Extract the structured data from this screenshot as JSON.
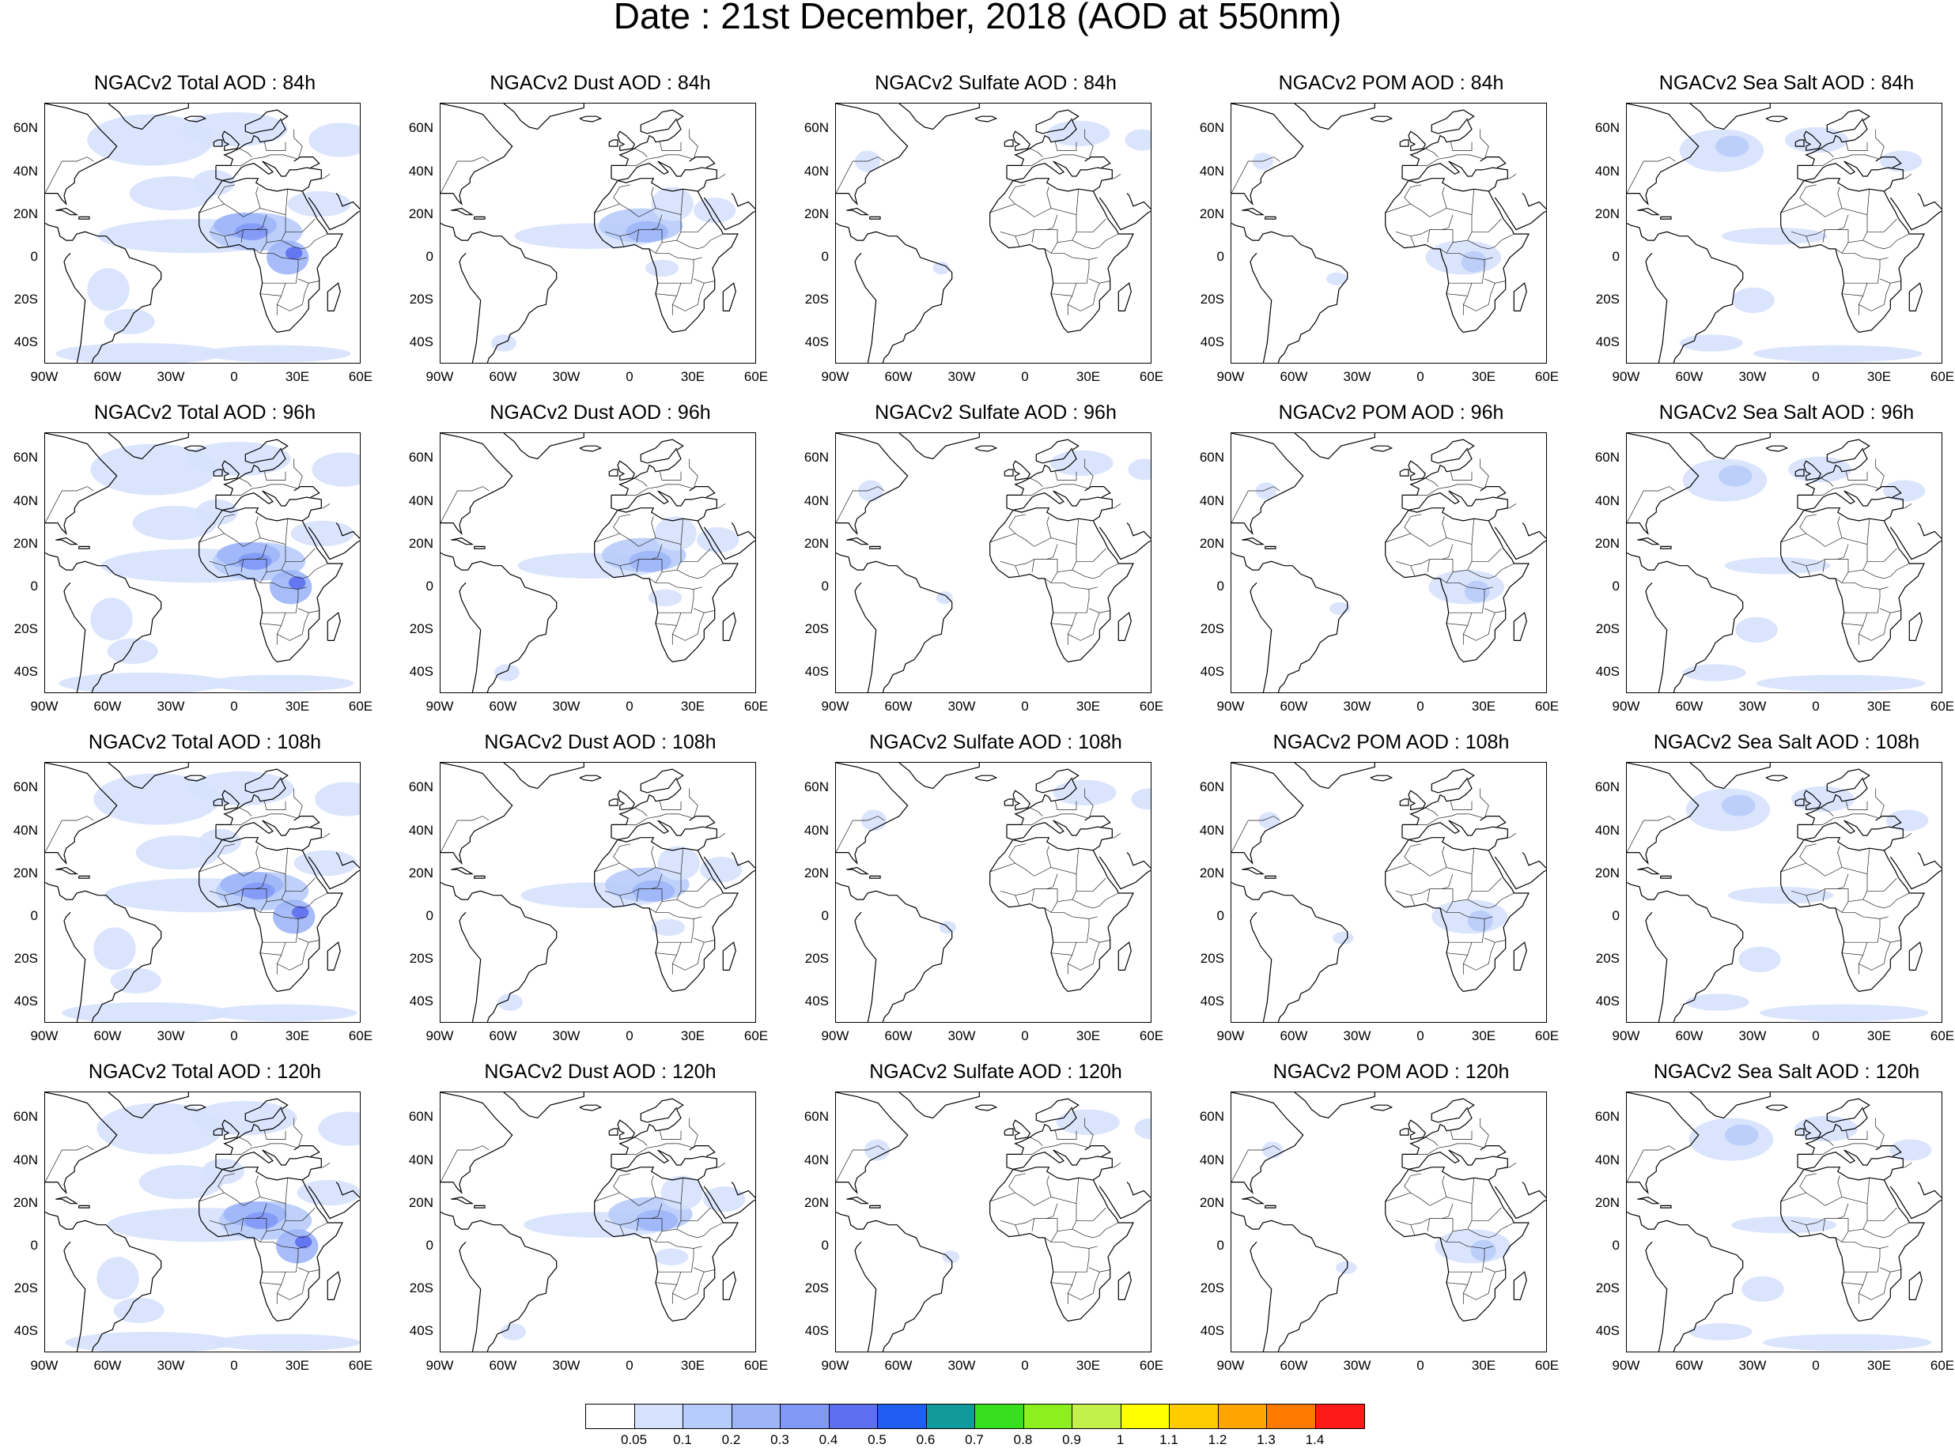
{
  "title": "Date : 21st December, 2018 (AOD at 550nm)",
  "lat_labels": [
    "60N",
    "40N",
    "20N",
    "0",
    "20S",
    "40S"
  ],
  "lon_labels": [
    "90W",
    "60W",
    "30W",
    "0",
    "30E",
    "60E"
  ],
  "panels": [
    {
      "title": "NGACv2 Total AOD : 84h",
      "species": "total",
      "hour": 84
    },
    {
      "title": "NGACv2 Dust AOD : 84h",
      "species": "dust",
      "hour": 84
    },
    {
      "title": "NGACv2 Sulfate AOD : 84h",
      "species": "sulfate",
      "hour": 84
    },
    {
      "title": "NGACv2 POM AOD : 84h",
      "species": "pom",
      "hour": 84
    },
    {
      "title": "NGACv2 Sea Salt AOD : 84h",
      "species": "seasalt",
      "hour": 84
    },
    {
      "title": "NGACv2 Total AOD : 96h",
      "species": "total",
      "hour": 96
    },
    {
      "title": "NGACv2 Dust AOD : 96h",
      "species": "dust",
      "hour": 96
    },
    {
      "title": "NGACv2 Sulfate AOD : 96h",
      "species": "sulfate",
      "hour": 96
    },
    {
      "title": "NGACv2 POM AOD : 96h",
      "species": "pom",
      "hour": 96
    },
    {
      "title": "NGACv2 Sea Salt AOD : 96h",
      "species": "seasalt",
      "hour": 96
    },
    {
      "title": "NGACv2 Total AOD : 108h",
      "species": "total",
      "hour": 108
    },
    {
      "title": "NGACv2 Dust AOD : 108h",
      "species": "dust",
      "hour": 108
    },
    {
      "title": "NGACv2 Sulfate AOD : 108h",
      "species": "sulfate",
      "hour": 108
    },
    {
      "title": "NGACv2 POM AOD : 108h",
      "species": "pom",
      "hour": 108
    },
    {
      "title": "NGACv2 Sea Salt AOD : 108h",
      "species": "seasalt",
      "hour": 108
    },
    {
      "title": "NGACv2 Total AOD : 120h",
      "species": "total",
      "hour": 120
    },
    {
      "title": "NGACv2 Dust AOD : 120h",
      "species": "dust",
      "hour": 120
    },
    {
      "title": "NGACv2 Sulfate AOD : 120h",
      "species": "sulfate",
      "hour": 120
    },
    {
      "title": "NGACv2 POM AOD : 120h",
      "species": "pom",
      "hour": 120
    },
    {
      "title": "NGACv2 Sea Salt  AOD : 120h",
      "species": "seasalt",
      "hour": 120
    }
  ],
  "colorbar": {
    "colors": [
      "#ffffff",
      "#d6e2fd",
      "#b8ccfb",
      "#9db5f8",
      "#8199f6",
      "#5e6ef0",
      "#1f5ef0",
      "#119a9a",
      "#37e01e",
      "#8cf01e",
      "#c3f04a",
      "#ffff00",
      "#ffcc00",
      "#ffa500",
      "#ff7a00",
      "#ff1a1a"
    ],
    "labels": [
      "0.05",
      "0.1",
      "0.2",
      "0.3",
      "0.4",
      "0.5",
      "0.6",
      "0.7",
      "0.8",
      "0.9",
      "1",
      "1.1",
      "1.2",
      "1.3",
      "1.4"
    ]
  }
}
